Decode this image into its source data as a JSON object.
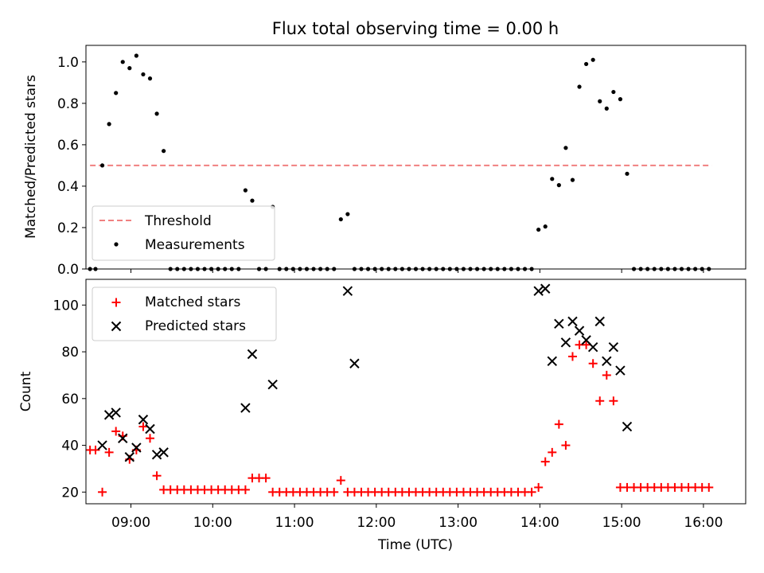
{
  "chart_data": [
    {
      "type": "scatter",
      "title": "Flux total observing time = 0.00 h",
      "xlabel": "",
      "ylabel": "Matched/Predicted stars",
      "ylim": [
        0,
        1.08
      ],
      "yticks": [
        "0.0",
        "0.2",
        "0.4",
        "0.6",
        "0.8",
        "1.0"
      ],
      "ytick_values": [
        0,
        0.2,
        0.4,
        0.6,
        0.8,
        1.0
      ],
      "xlim": [
        "08:27",
        "16:31"
      ],
      "legend_position": "lower-left",
      "threshold": {
        "name": "Threshold",
        "value": 0.5,
        "x_start": "08:30",
        "x_end": "16:06",
        "color": "#f08080"
      },
      "series": [
        {
          "name": "Measurements",
          "color": "#000000",
          "marker": "dot",
          "x": [
            "08:30",
            "08:34",
            "08:39",
            "08:44",
            "08:49",
            "08:54",
            "08:59",
            "09:04",
            "09:09",
            "09:14",
            "09:19",
            "09:24",
            "09:29",
            "09:34",
            "09:39",
            "09:44",
            "09:49",
            "09:54",
            "09:59",
            "10:04",
            "10:09",
            "10:14",
            "10:19",
            "10:24",
            "10:29",
            "10:34",
            "10:39",
            "10:44",
            "10:49",
            "10:54",
            "10:59",
            "11:04",
            "11:09",
            "11:14",
            "11:19",
            "11:24",
            "11:29",
            "11:34",
            "11:39",
            "11:44",
            "11:49",
            "11:54",
            "11:59",
            "12:04",
            "12:09",
            "12:14",
            "12:19",
            "12:24",
            "12:29",
            "12:34",
            "12:39",
            "12:44",
            "12:49",
            "12:54",
            "12:59",
            "13:04",
            "13:09",
            "13:14",
            "13:19",
            "13:24",
            "13:29",
            "13:34",
            "13:39",
            "13:44",
            "13:49",
            "13:54",
            "13:59",
            "14:04",
            "14:09",
            "14:14",
            "14:19",
            "14:24",
            "14:29",
            "14:34",
            "14:39",
            "14:44",
            "14:49",
            "14:54",
            "14:59",
            "15:04",
            "15:09",
            "15:14",
            "15:19",
            "15:24",
            "15:29",
            "15:34",
            "15:39",
            "15:44",
            "15:49",
            "15:54",
            "15:59",
            "16:04"
          ],
          "y": [
            0,
            0,
            0.5,
            0.7,
            0.85,
            1.0,
            0.97,
            1.03,
            0.94,
            0.92,
            0.75,
            0.57,
            0,
            0,
            0,
            0,
            0,
            0,
            0,
            0,
            0,
            0,
            0,
            0.38,
            0.33,
            0,
            0,
            0.3,
            0,
            0,
            0,
            0,
            0,
            0,
            0,
            0,
            0,
            0.24,
            0.265,
            0,
            0,
            0,
            0,
            0,
            0,
            0,
            0,
            0,
            0,
            0,
            0,
            0,
            0,
            0,
            0,
            0,
            0,
            0,
            0,
            0,
            0,
            0,
            0,
            0,
            0,
            0,
            0.19,
            0.205,
            0.435,
            0.405,
            0.585,
            0.43,
            0.88,
            0.99,
            1.01,
            0.81,
            0.775,
            0.855,
            0.82,
            0.46,
            0,
            0,
            0,
            0,
            0,
            0,
            0,
            0,
            0,
            0,
            0,
            0
          ]
        }
      ]
    },
    {
      "type": "scatter",
      "title": "",
      "xlabel": "Time (UTC)",
      "ylabel": "Count",
      "ylim": [
        15,
        111
      ],
      "yticks": [
        "20",
        "40",
        "60",
        "80",
        "100"
      ],
      "ytick_values": [
        20,
        40,
        60,
        80,
        100
      ],
      "xlim": [
        "08:27",
        "16:31"
      ],
      "xticks": [
        "09:00",
        "10:00",
        "11:00",
        "12:00",
        "13:00",
        "14:00",
        "15:00",
        "16:00"
      ],
      "legend_position": "upper-left",
      "series": [
        {
          "name": "Matched stars",
          "color": "#ff0000",
          "marker": "plus",
          "x": [
            "08:30",
            "08:34",
            "08:39",
            "08:44",
            "08:49",
            "08:54",
            "08:59",
            "09:04",
            "09:09",
            "09:14",
            "09:19",
            "09:24",
            "09:29",
            "09:34",
            "09:39",
            "09:44",
            "09:49",
            "09:54",
            "09:59",
            "10:04",
            "10:09",
            "10:14",
            "10:19",
            "10:24",
            "10:29",
            "10:34",
            "10:39",
            "10:44",
            "10:49",
            "10:54",
            "10:59",
            "11:04",
            "11:09",
            "11:14",
            "11:19",
            "11:24",
            "11:29",
            "11:34",
            "11:39",
            "11:44",
            "11:49",
            "11:54",
            "11:59",
            "12:04",
            "12:09",
            "12:14",
            "12:19",
            "12:24",
            "12:29",
            "12:34",
            "12:39",
            "12:44",
            "12:49",
            "12:54",
            "12:59",
            "13:04",
            "13:09",
            "13:14",
            "13:19",
            "13:24",
            "13:29",
            "13:34",
            "13:39",
            "13:44",
            "13:49",
            "13:54",
            "13:59",
            "14:04",
            "14:09",
            "14:14",
            "14:19",
            "14:24",
            "14:29",
            "14:34",
            "14:39",
            "14:44",
            "14:49",
            "14:54",
            "14:59",
            "15:04",
            "15:09",
            "15:14",
            "15:19",
            "15:24",
            "15:29",
            "15:34",
            "15:39",
            "15:44",
            "15:49",
            "15:54",
            "15:59",
            "16:04"
          ],
          "y": [
            38,
            38,
            20,
            37,
            46,
            44,
            34,
            38,
            48,
            43,
            27,
            21,
            21,
            21,
            21,
            21,
            21,
            21,
            21,
            21,
            21,
            21,
            21,
            21,
            26,
            26,
            26,
            20,
            20,
            20,
            20,
            20,
            20,
            20,
            20,
            20,
            20,
            25,
            20,
            20,
            20,
            20,
            20,
            20,
            20,
            20,
            20,
            20,
            20,
            20,
            20,
            20,
            20,
            20,
            20,
            20,
            20,
            20,
            20,
            20,
            20,
            20,
            20,
            20,
            20,
            20,
            22,
            33,
            37,
            49,
            40,
            78,
            83,
            83,
            75,
            59,
            70,
            59,
            22,
            22,
            22,
            22,
            22,
            22,
            22,
            22,
            22,
            22,
            22,
            22,
            22,
            22
          ]
        },
        {
          "name": "Predicted stars",
          "color": "#000000",
          "marker": "cross",
          "x": [
            "08:39",
            "08:44",
            "08:49",
            "08:54",
            "08:59",
            "09:04",
            "09:09",
            "09:14",
            "09:19",
            "09:24",
            "10:24",
            "10:29",
            "10:44",
            "11:39",
            "11:44",
            "13:59",
            "14:04",
            "14:09",
            "14:14",
            "14:19",
            "14:24",
            "14:29",
            "14:34",
            "14:39",
            "14:44",
            "14:49",
            "14:54",
            "14:59",
            "15:04"
          ],
          "y": [
            40,
            53,
            54,
            43,
            35,
            39,
            51,
            47,
            36,
            37,
            56,
            79,
            66,
            106,
            75,
            106,
            107,
            76,
            92,
            84,
            93,
            89,
            85,
            82,
            93,
            76,
            82,
            72,
            48
          ]
        }
      ]
    }
  ]
}
